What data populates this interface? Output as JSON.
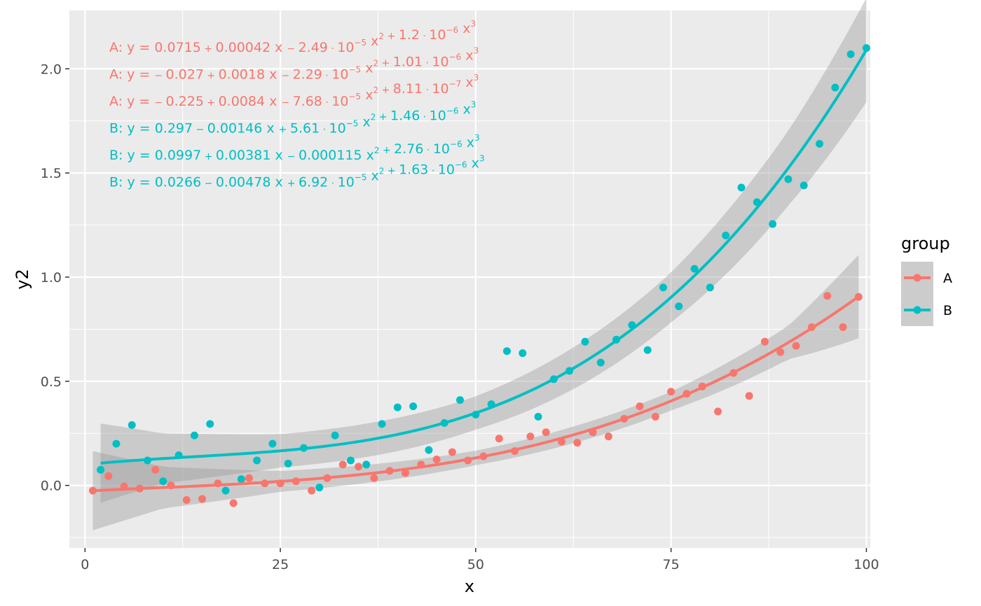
{
  "chart_data": {
    "type": "scatter",
    "xlabel": "x",
    "ylabel": "y2",
    "xlim": [
      -2,
      100.5
    ],
    "ylim": [
      -0.3,
      2.28
    ],
    "x_ticks": [
      0,
      25,
      50,
      75,
      100
    ],
    "x_tick_labels": [
      "0",
      "25",
      "50",
      "75",
      "100"
    ],
    "y_ticks": [
      0,
      0.5,
      1,
      1.5,
      2
    ],
    "y_tick_labels": [
      "0.0",
      "0.5",
      "1.0",
      "1.5",
      "2.0"
    ],
    "grid": true,
    "legend": {
      "title": "group",
      "placement": "right",
      "entries": [
        "A",
        "B"
      ]
    },
    "colors": {
      "A": "#F8766D",
      "B": "#00BFC4",
      "panel": "#EBEBEB",
      "ribbon": "#999999"
    },
    "annotations": [
      {
        "group": "A",
        "parts": [
          [
            "A: y = 0.0715",
            "n"
          ],
          [
            " + ",
            "s"
          ],
          [
            "0.00042 x ",
            "n"
          ],
          [
            "− ",
            "s"
          ],
          [
            "2.49",
            "n"
          ],
          [
            " · ",
            "s"
          ],
          [
            "10",
            "n"
          ],
          [
            "−5",
            "p"
          ],
          [
            " x",
            "n"
          ],
          [
            "2",
            "p"
          ],
          [
            " + ",
            "s"
          ],
          [
            "1.2",
            "n"
          ],
          [
            " · ",
            "s"
          ],
          [
            "10",
            "n"
          ],
          [
            "−6",
            "p"
          ],
          [
            " x",
            "n"
          ],
          [
            "3",
            "p"
          ]
        ]
      },
      {
        "group": "A",
        "parts": [
          [
            "A: y = ",
            "n"
          ],
          [
            "− ",
            "s"
          ],
          [
            "0.027",
            "n"
          ],
          [
            " + ",
            "s"
          ],
          [
            "0.0018 x ",
            "n"
          ],
          [
            "− ",
            "s"
          ],
          [
            "2.29",
            "n"
          ],
          [
            " · ",
            "s"
          ],
          [
            "10",
            "n"
          ],
          [
            "−5",
            "p"
          ],
          [
            " x",
            "n"
          ],
          [
            "2",
            "p"
          ],
          [
            " + ",
            "s"
          ],
          [
            "1.01",
            "n"
          ],
          [
            " · ",
            "s"
          ],
          [
            "10",
            "n"
          ],
          [
            "−6",
            "p"
          ],
          [
            " x",
            "n"
          ],
          [
            "3",
            "p"
          ]
        ]
      },
      {
        "group": "A",
        "parts": [
          [
            "A: y = ",
            "n"
          ],
          [
            "− ",
            "s"
          ],
          [
            "0.225",
            "n"
          ],
          [
            " + ",
            "s"
          ],
          [
            "0.0084 x ",
            "n"
          ],
          [
            "− ",
            "s"
          ],
          [
            "7.68",
            "n"
          ],
          [
            " · ",
            "s"
          ],
          [
            "10",
            "n"
          ],
          [
            "−5",
            "p"
          ],
          [
            " x",
            "n"
          ],
          [
            "2",
            "p"
          ],
          [
            " + ",
            "s"
          ],
          [
            "8.11",
            "n"
          ],
          [
            " · ",
            "s"
          ],
          [
            "10",
            "n"
          ],
          [
            "−7",
            "p"
          ],
          [
            " x",
            "n"
          ],
          [
            "3",
            "p"
          ]
        ]
      },
      {
        "group": "B",
        "parts": [
          [
            "B: y = 0.297",
            "n"
          ],
          [
            " − ",
            "s"
          ],
          [
            "0.00146 x ",
            "n"
          ],
          [
            "+ ",
            "s"
          ],
          [
            "5.61",
            "n"
          ],
          [
            " · ",
            "s"
          ],
          [
            "10",
            "n"
          ],
          [
            "−5",
            "p"
          ],
          [
            " x",
            "n"
          ],
          [
            "2",
            "p"
          ],
          [
            " + ",
            "s"
          ],
          [
            "1.46",
            "n"
          ],
          [
            " · ",
            "s"
          ],
          [
            "10",
            "n"
          ],
          [
            "−6",
            "p"
          ],
          [
            " x",
            "n"
          ],
          [
            "3",
            "p"
          ]
        ]
      },
      {
        "group": "B",
        "parts": [
          [
            "B: y = 0.0997",
            "n"
          ],
          [
            " + ",
            "s"
          ],
          [
            "0.00381 x ",
            "n"
          ],
          [
            "− ",
            "s"
          ],
          [
            "0.000115 x",
            "n"
          ],
          [
            "2",
            "p"
          ],
          [
            " + ",
            "s"
          ],
          [
            "2.76",
            "n"
          ],
          [
            " · ",
            "s"
          ],
          [
            "10",
            "n"
          ],
          [
            "−6",
            "p"
          ],
          [
            " x",
            "n"
          ],
          [
            "3",
            "p"
          ]
        ]
      },
      {
        "group": "B",
        "parts": [
          [
            "B: y = 0.0266",
            "n"
          ],
          [
            " − ",
            "s"
          ],
          [
            "0.00478 x ",
            "n"
          ],
          [
            "+ ",
            "s"
          ],
          [
            "6.92",
            "n"
          ],
          [
            " · ",
            "s"
          ],
          [
            "10",
            "n"
          ],
          [
            "−5",
            "p"
          ],
          [
            " x",
            "n"
          ],
          [
            "2",
            "p"
          ],
          [
            " + ",
            "s"
          ],
          [
            "1.63",
            "n"
          ],
          [
            " · ",
            "s"
          ],
          [
            "10",
            "n"
          ],
          [
            "−6",
            "p"
          ],
          [
            " x",
            "n"
          ],
          [
            "3",
            "p"
          ]
        ]
      }
    ],
    "fit_coefficients": {
      "A": [
        -0.027,
        0.0018,
        -2.29e-05,
        1.01e-06
      ],
      "B": [
        0.0997,
        0.00381,
        -0.000115,
        2.76e-06
      ]
    },
    "ribbon_halfwidth": {
      "A": [
        [
          1,
          0.19
        ],
        [
          10,
          0.1
        ],
        [
          25,
          0.05
        ],
        [
          50,
          0.035
        ],
        [
          75,
          0.045
        ],
        [
          90,
          0.08
        ],
        [
          99,
          0.2
        ]
      ],
      "B": [
        [
          2,
          0.19
        ],
        [
          10,
          0.12
        ],
        [
          25,
          0.08
        ],
        [
          50,
          0.08
        ],
        [
          75,
          0.12
        ],
        [
          90,
          0.18
        ],
        [
          100,
          0.25
        ]
      ]
    },
    "series": [
      {
        "name": "A",
        "points": [
          [
            1,
            -0.025
          ],
          [
            3,
            0.045
          ],
          [
            5,
            -0.005
          ],
          [
            7,
            -0.015
          ],
          [
            9,
            0.075
          ],
          [
            11,
            0.0
          ],
          [
            13,
            -0.07
          ],
          [
            15,
            -0.065
          ],
          [
            17,
            0.01
          ],
          [
            19,
            -0.085
          ],
          [
            21,
            0.035
          ],
          [
            23,
            0.01
          ],
          [
            25,
            0.01
          ],
          [
            27,
            0.02
          ],
          [
            29,
            -0.025
          ],
          [
            31,
            0.035
          ],
          [
            33,
            0.1
          ],
          [
            35,
            0.09
          ],
          [
            37,
            0.035
          ],
          [
            39,
            0.07
          ],
          [
            41,
            0.06
          ],
          [
            43,
            0.1
          ],
          [
            45,
            0.125
          ],
          [
            47,
            0.16
          ],
          [
            49,
            0.12
          ],
          [
            51,
            0.14
          ],
          [
            53,
            0.225
          ],
          [
            55,
            0.165
          ],
          [
            57,
            0.235
          ],
          [
            59,
            0.255
          ],
          [
            61,
            0.21
          ],
          [
            63,
            0.205
          ],
          [
            65,
            0.255
          ],
          [
            67,
            0.235
          ],
          [
            69,
            0.32
          ],
          [
            71,
            0.38
          ],
          [
            73,
            0.33
          ],
          [
            75,
            0.45
          ],
          [
            77,
            0.44
          ],
          [
            79,
            0.475
          ],
          [
            81,
            0.355
          ],
          [
            83,
            0.54
          ],
          [
            85,
            0.43
          ],
          [
            87,
            0.69
          ],
          [
            89,
            0.64
          ],
          [
            91,
            0.67
          ],
          [
            93,
            0.76
          ],
          [
            95,
            0.91
          ],
          [
            97,
            0.76
          ],
          [
            99,
            0.905
          ]
        ]
      },
      {
        "name": "B",
        "points": [
          [
            2,
            0.075
          ],
          [
            4,
            0.2
          ],
          [
            6,
            0.29
          ],
          [
            8,
            0.12
          ],
          [
            10,
            0.02
          ],
          [
            12,
            0.145
          ],
          [
            14,
            0.24
          ],
          [
            16,
            0.295
          ],
          [
            18,
            -0.025
          ],
          [
            20,
            0.03
          ],
          [
            22,
            0.12
          ],
          [
            24,
            0.2
          ],
          [
            26,
            0.105
          ],
          [
            28,
            0.18
          ],
          [
            30,
            -0.01
          ],
          [
            32,
            0.24
          ],
          [
            34,
            0.12
          ],
          [
            36,
            0.1
          ],
          [
            38,
            0.295
          ],
          [
            40,
            0.375
          ],
          [
            42,
            0.38
          ],
          [
            44,
            0.17
          ],
          [
            46,
            0.3
          ],
          [
            48,
            0.41
          ],
          [
            50,
            0.34
          ],
          [
            52,
            0.39
          ],
          [
            54,
            0.645
          ],
          [
            56,
            0.635
          ],
          [
            58,
            0.33
          ],
          [
            60,
            0.51
          ],
          [
            62,
            0.55
          ],
          [
            64,
            0.69
          ],
          [
            66,
            0.59
          ],
          [
            68,
            0.7
          ],
          [
            70,
            0.77
          ],
          [
            72,
            0.65
          ],
          [
            74,
            0.95
          ],
          [
            76,
            0.86
          ],
          [
            78,
            1.04
          ],
          [
            80,
            0.95
          ],
          [
            82,
            1.2
          ],
          [
            84,
            1.43
          ],
          [
            86,
            1.36
          ],
          [
            88,
            1.255
          ],
          [
            90,
            1.47
          ],
          [
            92,
            1.44
          ],
          [
            94,
            1.64
          ],
          [
            96,
            1.91
          ],
          [
            98,
            2.07
          ],
          [
            100,
            2.1
          ]
        ]
      }
    ]
  }
}
